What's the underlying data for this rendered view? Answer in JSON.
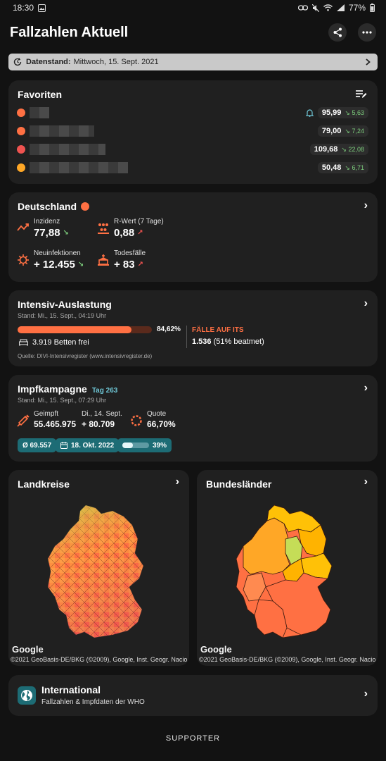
{
  "status": {
    "time": "18:30",
    "battery": "77%"
  },
  "app": {
    "title": "Fallzahlen Aktuell"
  },
  "datestrip": {
    "label": "Datenstand:",
    "value": "Mittwoch, 15. Sept. 2021"
  },
  "favorites": {
    "title": "Favoriten",
    "items": [
      {
        "color": "#ff7043",
        "value": "95,99",
        "delta": "5,63",
        "bell": true
      },
      {
        "color": "#ff7043",
        "value": "79,00",
        "delta": "7,24",
        "bell": false
      },
      {
        "color": "#ef5350",
        "value": "109,68",
        "delta": "22,08",
        "bell": false
      },
      {
        "color": "#ffa726",
        "value": "50,48",
        "delta": "6,71",
        "bell": false
      }
    ]
  },
  "germany": {
    "title": "Deutschland",
    "incidence_label": "Inzidenz",
    "incidence_value": "77,88",
    "rvalue_label": "R-Wert (7 Tage)",
    "rvalue_value": "0,88",
    "newcases_label": "Neuinfektionen",
    "newcases_value": "+ 12.455",
    "deaths_label": "Todesfälle",
    "deaths_value": "+ 83"
  },
  "icu": {
    "title": "Intensiv-Auslastung",
    "stand": "Stand: Mi., 15. Sept., 04:19 Uhr",
    "percent_text": "84,62%",
    "percent": 0.8462,
    "beds": "3.919 Betten frei",
    "cases_label": "FÄLLE AUF ITS",
    "cases_value": "1.536",
    "ventilated": "(51% beatmet)",
    "source": "Quelle: DIVI-Intensivregister (www.intensivregister.de)"
  },
  "vaccination": {
    "title": "Impfkampagne",
    "day": "Tag 263",
    "stand": "Stand: Mi., 15. Sept., 07:29 Uhr",
    "vaccinated_label": "Geimpft",
    "vaccinated_value": "55.465.975",
    "day_label": "Di., 14. Sept.",
    "day_value": "+ 80.709",
    "quota_label": "Quote",
    "quota_value": "66,70%",
    "avg": "Ø 69.557",
    "date": "18. Okt. 2022",
    "progress_text": "39%",
    "progress": 0.39
  },
  "maps": {
    "districts_title": "Landkreise",
    "states_title": "Bundesländer",
    "google": "Google",
    "copyright": "©2021 GeoBasis-DE/BKG (©2009), Google, Inst. Geogr. Nacio"
  },
  "international": {
    "title": "International",
    "subtitle": "Fallzahlen & Impfdaten der WHO"
  },
  "footer": {
    "supporter": "SUPPORTER"
  },
  "colors": {
    "accent": "#ff7043",
    "teal": "#1d6c75",
    "green": "#7ccc7c",
    "red": "#ef5350"
  }
}
